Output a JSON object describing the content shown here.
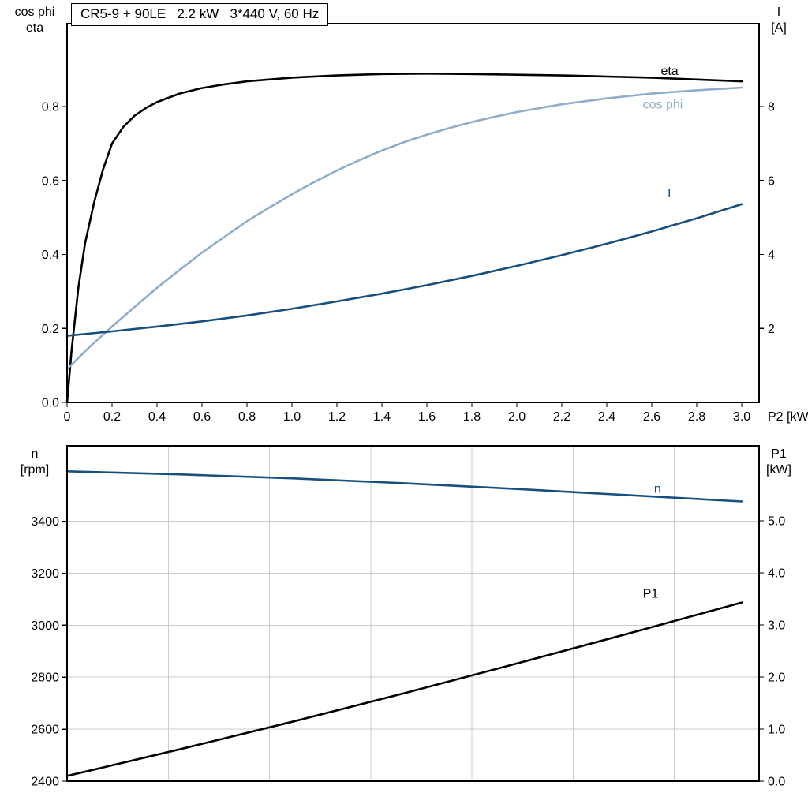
{
  "colors": {
    "black_curve": "#000000",
    "light_blue_curve": "#8fadca",
    "dark_blue_curve": "#17507e",
    "grid": "#cccccc",
    "frame": "#000000",
    "text": "#000000",
    "background": "#ffffff"
  },
  "chart_data": [
    {
      "type": "line",
      "title": "CR5-9 + 90LE   2.2 kW   3*440 V, 60 Hz",
      "x_axis": {
        "label": "P2 [kW]",
        "range": [
          0,
          3.077
        ],
        "ticks": [
          0,
          0.2,
          0.4,
          0.6,
          0.8,
          1.0,
          1.2,
          1.4,
          1.6,
          1.8,
          2.0,
          2.2,
          2.4,
          2.6,
          2.8,
          3.0
        ],
        "tick_labels": [
          "0",
          "0.2",
          "0.4",
          "0.6",
          "0.8",
          "1.0",
          "1.2",
          "1.4",
          "1.6",
          "1.8",
          "2.0",
          "2.2",
          "2.4",
          "2.6",
          "2.8",
          "3.0"
        ],
        "gridlines": []
      },
      "y_left": {
        "label": "cos phi / eta",
        "label_lines": [
          "cos phi",
          "eta"
        ],
        "range": [
          0,
          1.024
        ],
        "ticks": [
          0.0,
          0.2,
          0.4,
          0.6,
          0.8
        ],
        "tick_labels": [
          "0.0",
          "0.2",
          "0.4",
          "0.6",
          "0.8"
        ],
        "gridlines": []
      },
      "y_right": {
        "label": "I [A]",
        "label_lines": [
          "I",
          "[A]"
        ],
        "range": [
          0,
          10.24
        ],
        "ticks": [
          2,
          4,
          6,
          8
        ],
        "tick_labels": [
          "2",
          "4",
          "6",
          "8"
        ],
        "gridlines": []
      },
      "grid": false,
      "legend_position": "inline-labels",
      "series": [
        {
          "name": "eta",
          "axis": "left",
          "color": "black_curve",
          "x": [
            0,
            0.02,
            0.05,
            0.08,
            0.12,
            0.16,
            0.2,
            0.25,
            0.3,
            0.35,
            0.4,
            0.5,
            0.6,
            0.7,
            0.8,
            1.0,
            1.2,
            1.4,
            1.6,
            1.8,
            2.0,
            2.2,
            2.4,
            2.6,
            2.8,
            3.0
          ],
          "y": [
            0,
            0.14,
            0.31,
            0.43,
            0.54,
            0.63,
            0.7,
            0.745,
            0.775,
            0.796,
            0.812,
            0.835,
            0.85,
            0.86,
            0.868,
            0.878,
            0.884,
            0.888,
            0.889,
            0.888,
            0.886,
            0.884,
            0.881,
            0.878,
            0.873,
            0.868
          ],
          "label": "eta",
          "label_pos": [
            2.64,
            0.885
          ]
        },
        {
          "name": "cos phi",
          "axis": "left",
          "color": "light_blue_curve",
          "x": [
            0,
            0.1,
            0.2,
            0.3,
            0.4,
            0.5,
            0.6,
            0.7,
            0.8,
            0.9,
            1.0,
            1.1,
            1.2,
            1.3,
            1.4,
            1.5,
            1.6,
            1.7,
            1.8,
            1.9,
            2.0,
            2.2,
            2.4,
            2.6,
            2.8,
            3.0
          ],
          "y": [
            0.09,
            0.15,
            0.205,
            0.258,
            0.31,
            0.358,
            0.405,
            0.448,
            0.49,
            0.527,
            0.563,
            0.596,
            0.627,
            0.655,
            0.681,
            0.704,
            0.724,
            0.742,
            0.758,
            0.772,
            0.785,
            0.806,
            0.822,
            0.835,
            0.844,
            0.851
          ],
          "label": "cos phi",
          "label_pos": [
            2.56,
            0.795
          ]
        },
        {
          "name": "I",
          "axis": "right",
          "color": "dark_blue_curve",
          "x": [
            0,
            0.2,
            0.4,
            0.6,
            0.8,
            1.0,
            1.2,
            1.4,
            1.6,
            1.8,
            2.0,
            2.2,
            2.4,
            2.6,
            2.8,
            3.0
          ],
          "y": [
            1.8,
            1.92,
            2.05,
            2.19,
            2.35,
            2.53,
            2.73,
            2.94,
            3.17,
            3.42,
            3.69,
            3.98,
            4.29,
            4.62,
            4.98,
            5.36
          ],
          "label": "I",
          "label_pos": [
            2.67,
            5.55
          ]
        }
      ]
    },
    {
      "type": "line",
      "title": "",
      "x_axis": {
        "label": "",
        "range": [
          0,
          3.077
        ],
        "ticks": [],
        "tick_labels": [],
        "gridlines": [
          0.45,
          0.9,
          1.35,
          1.8,
          2.25,
          2.7
        ]
      },
      "y_left": {
        "label": "n [rpm]",
        "label_lines": [
          "n",
          "[rpm]"
        ],
        "range": [
          2400,
          3690
        ],
        "ticks": [
          2400,
          2600,
          2800,
          3000,
          3200,
          3400
        ],
        "tick_labels": [
          "2400",
          "2600",
          "2800",
          "3000",
          "3200",
          "3400"
        ],
        "gridlines": [
          2600,
          2800,
          3000,
          3200,
          3400
        ]
      },
      "y_right": {
        "label": "P1 [kW]",
        "label_lines": [
          "P1",
          "[kW]"
        ],
        "range": [
          0,
          6.44
        ],
        "ticks": [
          0.0,
          1.0,
          2.0,
          3.0,
          4.0,
          5.0
        ],
        "tick_labels": [
          "0.0",
          "1.0",
          "2.0",
          "3.0",
          "4.0",
          "5.0"
        ],
        "gridlines": []
      },
      "grid": true,
      "legend_position": "inline-labels",
      "series": [
        {
          "name": "n",
          "axis": "left",
          "color": "dark_blue_curve",
          "x": [
            0,
            0.5,
            1.0,
            1.5,
            2.0,
            2.5,
            3.0
          ],
          "y": [
            3592,
            3580,
            3565,
            3546,
            3524,
            3500,
            3476
          ],
          "label": "n",
          "label_pos": [
            2.61,
            3510
          ]
        },
        {
          "name": "P1",
          "axis": "right",
          "color": "black_curve",
          "x": [
            0,
            0.5,
            1.0,
            1.5,
            2.0,
            2.5,
            3.0
          ],
          "y": [
            0.1,
            0.61,
            1.14,
            1.69,
            2.26,
            2.84,
            3.43
          ],
          "label": "P1",
          "label_pos": [
            2.56,
            3.52
          ]
        }
      ]
    }
  ]
}
